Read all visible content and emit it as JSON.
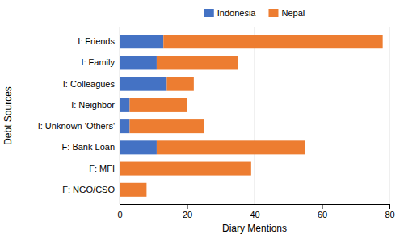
{
  "chart_data": {
    "type": "bar",
    "orientation": "horizontal",
    "stacked": true,
    "categories": [
      "I: Friends",
      "I: Family",
      "I: Colleagues",
      "I: Neighbor",
      "I: Unknown 'Others'",
      "F: Bank Loan",
      "F: MFI",
      "F: NGO/CSO"
    ],
    "series": [
      {
        "name": "Indonesia",
        "color": "#4472C4",
        "values": [
          13,
          11,
          14,
          3,
          3,
          11,
          0,
          0
        ]
      },
      {
        "name": "Nepal",
        "color": "#ED7D31",
        "values": [
          65,
          24,
          8,
          17,
          22,
          44,
          39,
          8
        ]
      }
    ],
    "xlabel": "Diary Mentions",
    "ylabel": "Debt Sources",
    "xlim": [
      0,
      80
    ],
    "xticks": [
      0,
      20,
      40,
      60,
      80
    ],
    "grid": true,
    "legend": "top"
  }
}
